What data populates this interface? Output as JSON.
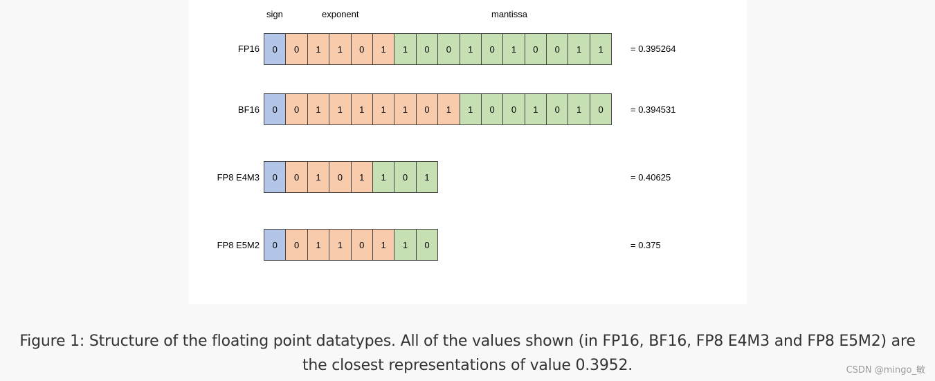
{
  "headers": {
    "sign": "sign",
    "exponent": "exponent",
    "mantissa": "mantissa"
  },
  "formats": [
    {
      "label": "FP16",
      "bits": [
        "0",
        "0",
        "1",
        "1",
        "0",
        "1",
        "1",
        "0",
        "0",
        "1",
        "0",
        "1",
        "0",
        "0",
        "1",
        "1"
      ],
      "types": [
        "sign",
        "exponent",
        "exponent",
        "exponent",
        "exponent",
        "exponent",
        "mantissa",
        "mantissa",
        "mantissa",
        "mantissa",
        "mantissa",
        "mantissa",
        "mantissa",
        "mantissa",
        "mantissa",
        "mantissa"
      ],
      "value": "= 0.395264"
    },
    {
      "label": "BF16",
      "bits": [
        "0",
        "0",
        "1",
        "1",
        "1",
        "1",
        "1",
        "0",
        "1",
        "1",
        "0",
        "0",
        "1",
        "0",
        "1",
        "0"
      ],
      "types": [
        "sign",
        "exponent",
        "exponent",
        "exponent",
        "exponent",
        "exponent",
        "exponent",
        "exponent",
        "exponent",
        "mantissa",
        "mantissa",
        "mantissa",
        "mantissa",
        "mantissa",
        "mantissa",
        "mantissa"
      ],
      "value": "= 0.394531"
    },
    {
      "label": "FP8 E4M3",
      "bits": [
        "0",
        "0",
        "1",
        "0",
        "1",
        "1",
        "0",
        "1"
      ],
      "types": [
        "sign",
        "exponent",
        "exponent",
        "exponent",
        "exponent",
        "mantissa",
        "mantissa",
        "mantissa"
      ],
      "value": "= 0.40625"
    },
    {
      "label": "FP8 E5M2",
      "bits": [
        "0",
        "0",
        "1",
        "1",
        "0",
        "1",
        "1",
        "0"
      ],
      "types": [
        "sign",
        "exponent",
        "exponent",
        "exponent",
        "exponent",
        "exponent",
        "mantissa",
        "mantissa"
      ],
      "value": "= 0.375"
    }
  ],
  "caption": {
    "line1": "Figure 1: Structure of the floating point datatypes. All of the values shown (in FP16, BF16, FP8 E4M3 and FP8 E5M2) are",
    "line2": "the closest representations of value 0.3952."
  },
  "watermark": "CSDN @mingo_敏",
  "colors": {
    "sign": "#b4c6e7",
    "exponent": "#f8cbad",
    "mantissa": "#c6e0b4"
  }
}
